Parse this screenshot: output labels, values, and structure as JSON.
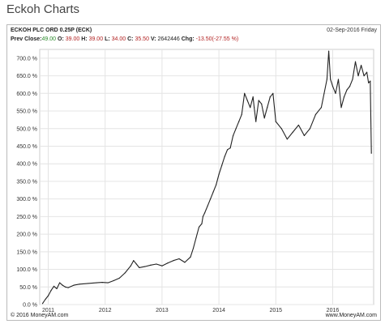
{
  "page": {
    "title": "Eckoh Charts"
  },
  "header": {
    "instrument": "ECKOH PLC ORD 0.25P (ECK)",
    "date": "02-Sep-2016 Friday",
    "prev_close_label": "Prev Close:",
    "prev_close": "49.00",
    "open_label": "O:",
    "open": "39.00",
    "high_label": "H:",
    "high": "39.00",
    "low_label": "L:",
    "low": "34.00",
    "close_label": "C:",
    "close": "35.50",
    "volume_label": "V:",
    "volume": "2642446",
    "change_label": "Chg:",
    "change": "-13.50(-27.55 %)"
  },
  "footer": {
    "copyright": "© 2016 MoneyAM.com",
    "site": "www.MoneyAM.com"
  },
  "colors": {
    "line": "#222222",
    "grid": "#e4e4e4",
    "positive": "#2a8a2a",
    "negative": "#b22222"
  },
  "chart_data": {
    "type": "line",
    "title": "",
    "xlabel": "",
    "ylabel": "",
    "ylim": [
      0,
      725
    ],
    "xlim": [
      2010.85,
      2016.72
    ],
    "y_ticks": [
      0,
      50,
      100,
      150,
      200,
      250,
      300,
      350,
      400,
      450,
      500,
      550,
      600,
      650,
      700
    ],
    "y_tick_labels": [
      "0.0 %",
      "50.0 %",
      "100.0 %",
      "150.0 %",
      "200.0 %",
      "250.0 %",
      "300.0 %",
      "350.0 %",
      "400.0 %",
      "450.0 %",
      "500.0 %",
      "550.0 %",
      "600.0 %",
      "650.0 %",
      "700.0 %"
    ],
    "x_ticks": [
      2011,
      2012,
      2013,
      2014,
      2015,
      2016
    ],
    "x_tick_labels": [
      "2011",
      "2012",
      "2013",
      "2014",
      "2015",
      "2016"
    ],
    "grid": true,
    "series": [
      {
        "x": [
          2010.9,
          2010.95,
          2011.0,
          2011.05,
          2011.1,
          2011.15,
          2011.2,
          2011.25,
          2011.3,
          2011.35,
          2011.45,
          2011.55,
          2011.7,
          2011.85,
          2011.95,
          2012.05,
          2012.15,
          2012.25,
          2012.35,
          2012.45,
          2012.5,
          2012.55,
          2012.6,
          2012.7,
          2012.8,
          2012.9,
          2013.0,
          2013.1,
          2013.2,
          2013.3,
          2013.4,
          2013.5,
          2013.55,
          2013.6,
          2013.65,
          2013.7,
          2013.72,
          2013.75,
          2013.8,
          2013.85,
          2013.9,
          2013.95,
          2014.0,
          2014.05,
          2014.1,
          2014.15,
          2014.2,
          2014.25,
          2014.3,
          2014.35,
          2014.4,
          2014.45,
          2014.5,
          2014.55,
          2014.6,
          2014.62,
          2014.65,
          2014.7,
          2014.75,
          2014.8,
          2014.85,
          2014.9,
          2014.95,
          2015.0,
          2015.1,
          2015.2,
          2015.3,
          2015.4,
          2015.5,
          2015.6,
          2015.7,
          2015.8,
          2015.85,
          2015.9,
          2015.93,
          2015.96,
          2016.0,
          2016.05,
          2016.1,
          2016.15,
          2016.2,
          2016.25,
          2016.3,
          2016.35,
          2016.4,
          2016.45,
          2016.5,
          2016.55,
          2016.6,
          2016.63,
          2016.66,
          2016.68
        ],
        "y": [
          3,
          15,
          25,
          40,
          52,
          45,
          62,
          55,
          50,
          48,
          55,
          58,
          60,
          62,
          63,
          62,
          68,
          75,
          90,
          110,
          125,
          115,
          105,
          108,
          112,
          115,
          110,
          118,
          125,
          130,
          120,
          135,
          160,
          190,
          220,
          230,
          250,
          260,
          280,
          300,
          320,
          340,
          370,
          395,
          420,
          440,
          445,
          480,
          500,
          520,
          540,
          600,
          580,
          560,
          590,
          560,
          520,
          580,
          570,
          530,
          560,
          590,
          600,
          520,
          500,
          470,
          490,
          510,
          480,
          500,
          540,
          560,
          600,
          640,
          720,
          640,
          620,
          600,
          640,
          560,
          590,
          610,
          620,
          640,
          690,
          650,
          680,
          650,
          660,
          630,
          635,
          430
        ]
      }
    ]
  }
}
